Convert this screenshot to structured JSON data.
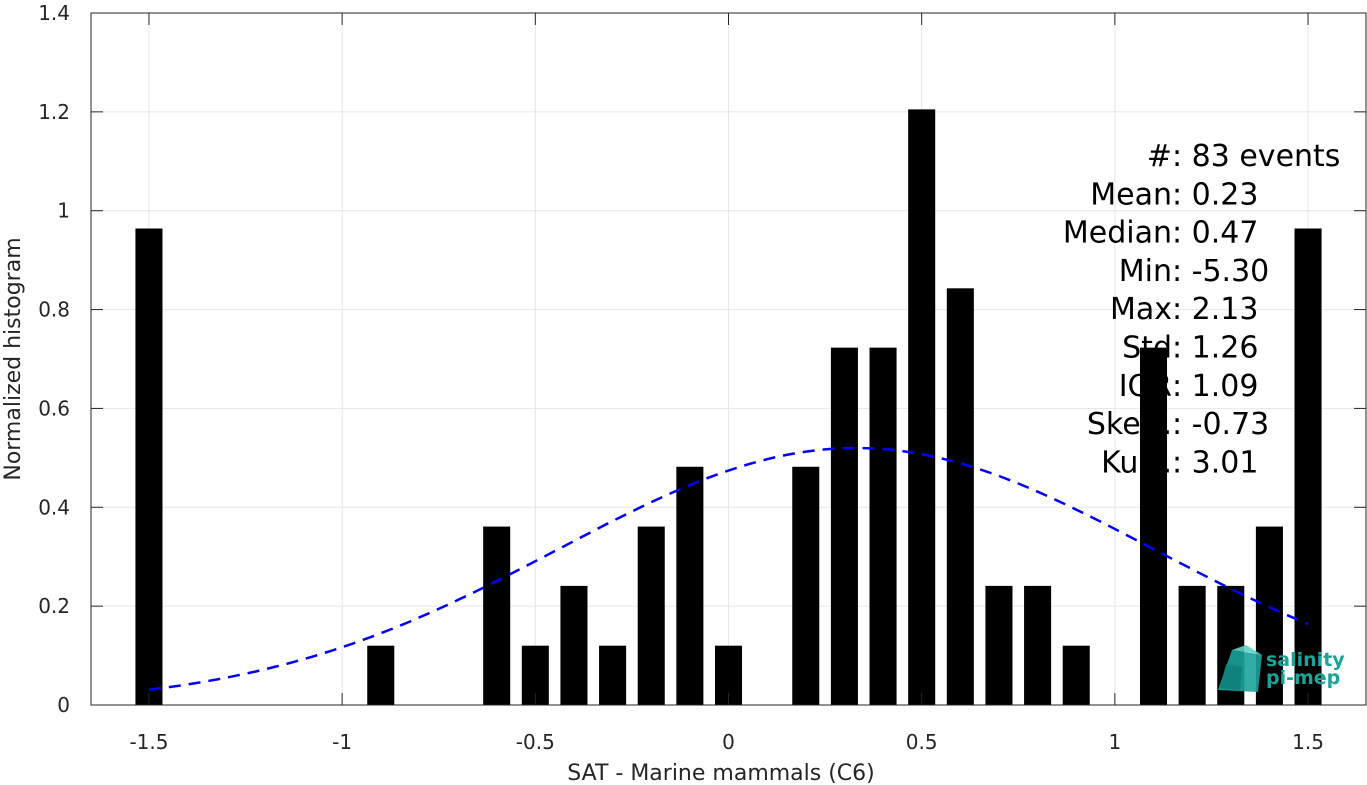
{
  "chart_data": {
    "type": "bar",
    "xlabel": "SAT - Marine mammals (C6)",
    "ylabel": "Normalized histogram",
    "xlim": [
      -1.65,
      1.65
    ],
    "ylim": [
      0,
      1.4
    ],
    "xticks": [
      -1.5,
      -1,
      -0.5,
      0,
      0.5,
      1,
      1.5
    ],
    "xtick_labels": [
      "-1.5",
      "-1",
      "-0.5",
      "0",
      "0.5",
      "1",
      "1.5"
    ],
    "yticks": [
      0,
      0.2,
      0.4,
      0.6,
      0.8,
      1,
      1.2,
      1.4
    ],
    "ytick_labels": [
      "0",
      "0.2",
      "0.4",
      "0.6",
      "0.8",
      "1",
      "1.2",
      "1.4"
    ],
    "grid": true,
    "bar_color": "#000000",
    "bar_width": 0.07,
    "bars": [
      {
        "x": -1.5,
        "y": 0.964
      },
      {
        "x": -0.9,
        "y": 0.12
      },
      {
        "x": -0.6,
        "y": 0.361
      },
      {
        "x": -0.5,
        "y": 0.12
      },
      {
        "x": -0.4,
        "y": 0.241
      },
      {
        "x": -0.3,
        "y": 0.12
      },
      {
        "x": -0.2,
        "y": 0.361
      },
      {
        "x": -0.1,
        "y": 0.482
      },
      {
        "x": 0.0,
        "y": 0.12
      },
      {
        "x": 0.2,
        "y": 0.482
      },
      {
        "x": 0.3,
        "y": 0.723
      },
      {
        "x": 0.4,
        "y": 0.723
      },
      {
        "x": 0.5,
        "y": 1.205
      },
      {
        "x": 0.6,
        "y": 0.843
      },
      {
        "x": 0.7,
        "y": 0.241
      },
      {
        "x": 0.8,
        "y": 0.241
      },
      {
        "x": 0.9,
        "y": 0.12
      },
      {
        "x": 1.1,
        "y": 0.723
      },
      {
        "x": 1.2,
        "y": 0.241
      },
      {
        "x": 1.3,
        "y": 0.241
      },
      {
        "x": 1.4,
        "y": 0.361
      },
      {
        "x": 1.5,
        "y": 0.964
      }
    ],
    "fit_curve": {
      "style": "dashed",
      "color": "#0000ff",
      "mean": 0.33,
      "std": 0.77,
      "peak": 0.52,
      "x_range": [
        -1.5,
        1.5
      ]
    },
    "stats": [
      {
        "label": "#  ",
        "value": ": 83 events"
      },
      {
        "label": "Mean ",
        "value": ": 0.23"
      },
      {
        "label": "Median ",
        "value": ": 0.47"
      },
      {
        "label": "Min ",
        "value": ": -5.30"
      },
      {
        "label": "Max ",
        "value": ": 2.13"
      },
      {
        "label": "Std ",
        "value": ": 1.26"
      },
      {
        "label": "IQR ",
        "value": ": 1.09"
      },
      {
        "label": "Skew. ",
        "value": ": -0.73"
      },
      {
        "label": "Kurt. ",
        "value": ": 3.01"
      }
    ]
  },
  "logo": {
    "line1": "salinity",
    "line2": "pi-mep",
    "color": "#1aa39a",
    "icon": "cube-logo-icon"
  }
}
